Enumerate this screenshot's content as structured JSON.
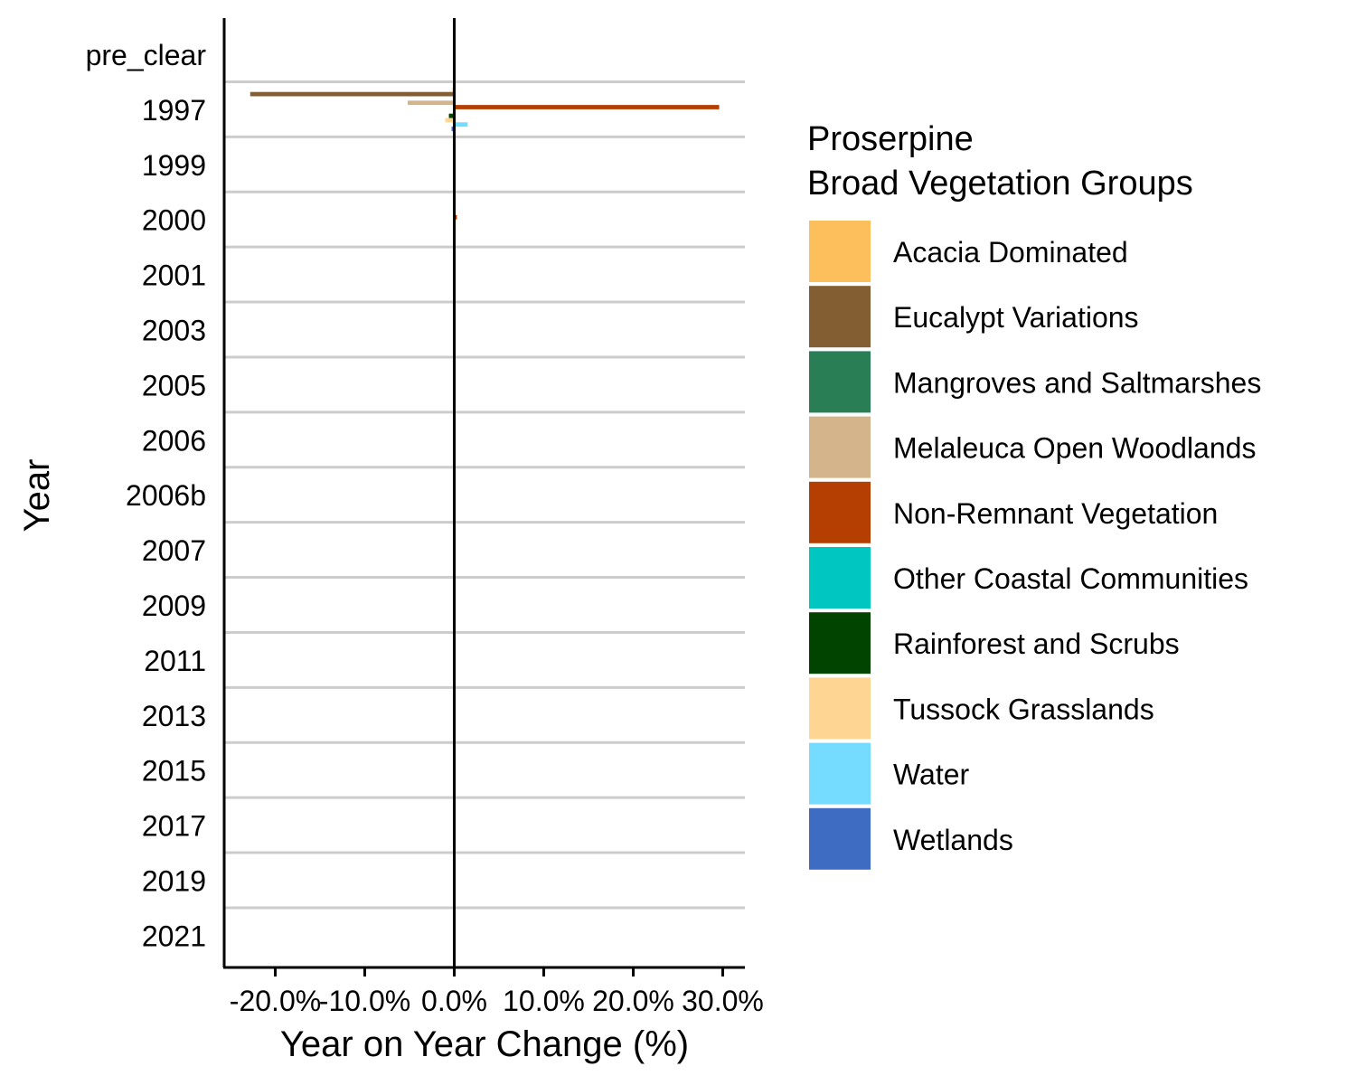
{
  "chart_data": {
    "type": "bar",
    "orientation": "horizontal",
    "legend_title_lines": [
      "Proserpine",
      "Broad Vegetation Groups"
    ],
    "xlabel": "Year on Year Change (%)",
    "ylabel": "Year",
    "xlim": [
      -25,
      32
    ],
    "xticks": [
      -20,
      -10,
      0,
      10,
      20,
      30
    ],
    "xtick_labels": [
      "-20.0%",
      "-10.0%",
      "0.0%",
      "10.0%",
      "20.0%",
      "30.0%"
    ],
    "grid": "horizontal between categories",
    "legend_position": "right",
    "categories": [
      "pre_clear",
      "1997",
      "1999",
      "2000",
      "2001",
      "2003",
      "2005",
      "2006",
      "2006b",
      "2007",
      "2009",
      "2011",
      "2013",
      "2015",
      "2017",
      "2019",
      "2021"
    ],
    "series": [
      {
        "name": "Acacia Dominated",
        "color": "#FDBF5B",
        "values": [
          0,
          -0.2,
          0,
          0,
          0,
          0,
          0,
          0,
          0,
          0,
          0,
          0,
          0,
          0,
          0,
          0,
          0
        ]
      },
      {
        "name": "Eucalypt Variations",
        "color": "#845E33",
        "values": [
          0,
          -22.8,
          0,
          0,
          0,
          0,
          0,
          0,
          0,
          0,
          0,
          0,
          0,
          0,
          0,
          0,
          0
        ]
      },
      {
        "name": "Mangroves and Saltmarshes",
        "color": "#2A7E56",
        "values": [
          0,
          -0.1,
          0,
          0,
          0,
          0,
          0,
          0,
          0,
          0,
          0,
          0,
          0,
          0,
          0,
          0,
          0
        ]
      },
      {
        "name": "Melaleuca Open Woodlands",
        "color": "#D4B48A",
        "values": [
          0,
          -5.2,
          0,
          0,
          0,
          0,
          0,
          0,
          0,
          0,
          0,
          0,
          0,
          0,
          0,
          0,
          0
        ]
      },
      {
        "name": "Non-Remnant Vegetation",
        "color": "#B53E02",
        "values": [
          0,
          29.6,
          0.1,
          0.3,
          0.1,
          0,
          0,
          0,
          0,
          0,
          0,
          0,
          0,
          0,
          0,
          0,
          0
        ]
      },
      {
        "name": "Other Coastal Communities",
        "color": "#00C6C2",
        "values": [
          0,
          0.1,
          0,
          0,
          0,
          0,
          0,
          0,
          0,
          0,
          0,
          0,
          0,
          0,
          0,
          0,
          0
        ]
      },
      {
        "name": "Rainforest and Scrubs",
        "color": "#004400",
        "values": [
          0,
          -0.6,
          0,
          0,
          0,
          0,
          0,
          0,
          0,
          0,
          0,
          0,
          0,
          0,
          0,
          0,
          0
        ]
      },
      {
        "name": "Tussock Grasslands",
        "color": "#FFD594",
        "values": [
          0,
          -1.0,
          0,
          0,
          0,
          0,
          0,
          0,
          0,
          0,
          0,
          0,
          0,
          0,
          0,
          0,
          0
        ]
      },
      {
        "name": "Water",
        "color": "#75DCFF",
        "values": [
          0,
          1.5,
          0,
          0,
          0,
          0,
          0,
          0,
          0,
          0,
          0,
          0,
          0,
          0,
          0,
          0,
          0
        ]
      },
      {
        "name": "Wetlands",
        "color": "#3D6CC2",
        "values": [
          0,
          -0.3,
          0,
          0,
          0,
          0,
          0,
          0,
          0,
          0,
          0,
          0,
          0,
          0,
          0,
          0,
          0
        ]
      }
    ]
  }
}
